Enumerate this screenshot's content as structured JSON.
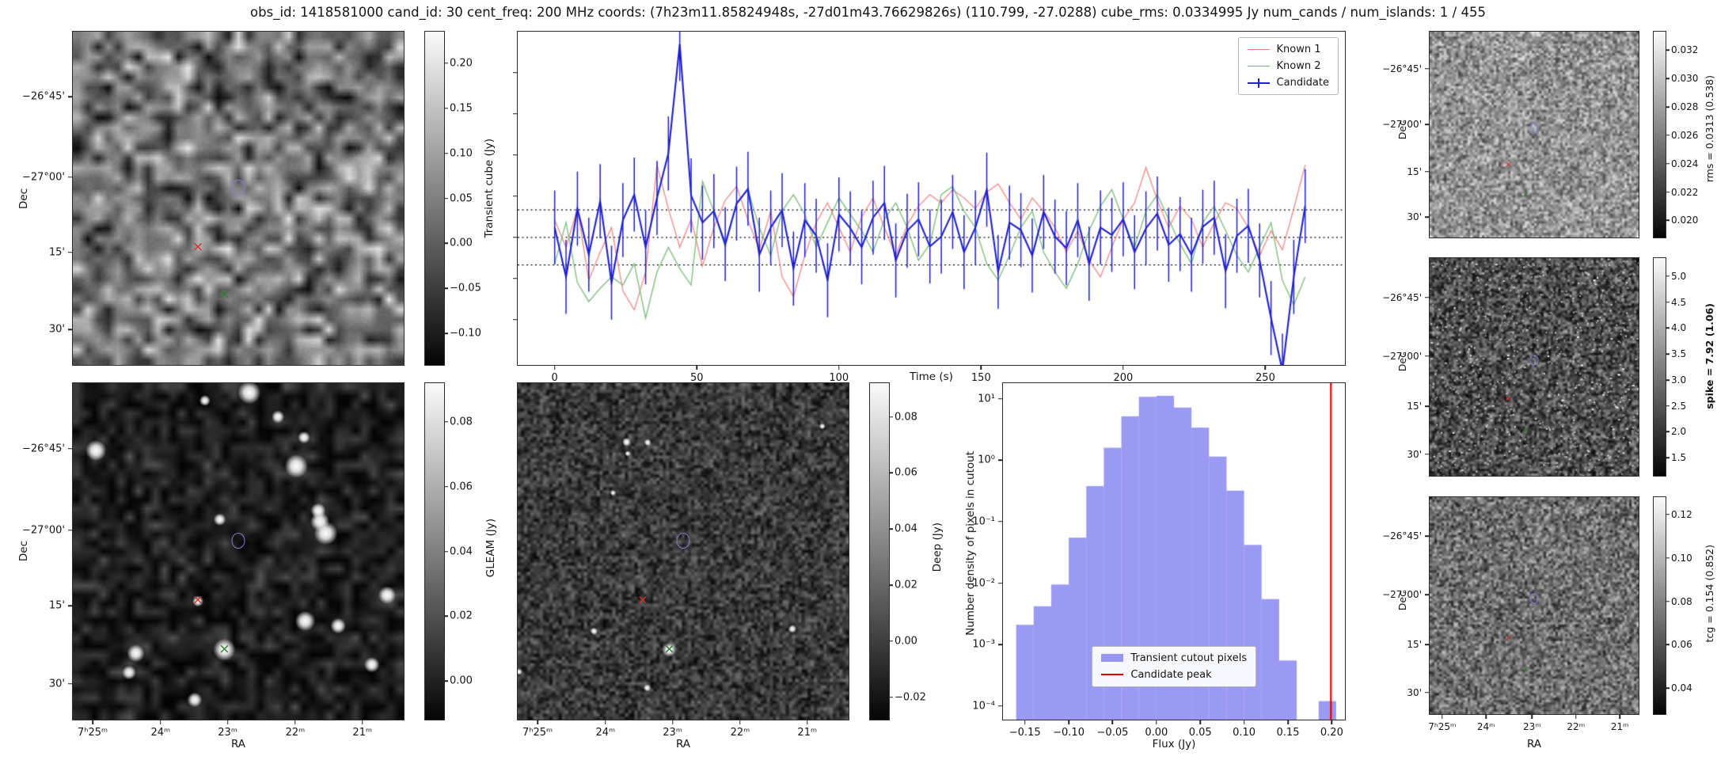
{
  "title": "obs_id: 1418581000 cand_id: 30 cent_freq: 200 MHz coords: (7h23m11.85824948s, -27d01m43.76629826s) (110.799, -27.0288) cube_rms: 0.0334995 Jy num_cands / num_islands: 1 / 455",
  "markers": [
    {
      "type": "circle",
      "name": "candidate",
      "color": "#8080d0",
      "fx": 0.5,
      "fy": 0.468
    },
    {
      "type": "x",
      "name": "known1",
      "color": "#cf2d2d",
      "fx": 0.378,
      "fy": 0.648
    },
    {
      "type": "x",
      "name": "known2",
      "color": "#2c7f2c",
      "fx": 0.458,
      "fy": 0.792
    }
  ],
  "panels": {
    "transient": {
      "ylabel": "Dec",
      "dec_ticks": [
        {
          "label": "−26°45'",
          "f": 0.195
        },
        {
          "label": "−27°00'",
          "f": 0.437
        },
        {
          "label": "15'",
          "f": 0.662
        },
        {
          "label": "30'",
          "f": 0.894
        }
      ],
      "cb_ticks": [
        {
          "label": "0.20",
          "f": 0.095
        },
        {
          "label": "0.15",
          "f": 0.23
        },
        {
          "label": "0.10",
          "f": 0.365
        },
        {
          "label": "0.05",
          "f": 0.5
        },
        {
          "label": "0.00",
          "f": 0.635
        },
        {
          "label": "−0.05",
          "f": 0.77
        },
        {
          "label": "−0.10",
          "f": 0.905
        }
      ]
    },
    "lightcurve": {
      "ylabel": "Transient cube (Jy)",
      "xlabel": "Time (s)"
    },
    "rms": {
      "ylabel": "Dec",
      "cb_label": "rms = 0.0313 (0.538)",
      "dec_ticks": [
        {
          "label": "−26°45'",
          "f": 0.18
        },
        {
          "label": "−27°00'",
          "f": 0.45
        },
        {
          "label": "15'",
          "f": 0.68
        },
        {
          "label": "30'",
          "f": 0.9
        }
      ],
      "cb_ticks": [
        {
          "label": "0.032",
          "f": 0.09
        },
        {
          "label": "0.030",
          "f": 0.228
        },
        {
          "label": "0.028",
          "f": 0.366
        },
        {
          "label": "0.026",
          "f": 0.503
        },
        {
          "label": "0.024",
          "f": 0.641
        },
        {
          "label": "0.022",
          "f": 0.779
        },
        {
          "label": "0.020",
          "f": 0.917
        }
      ]
    },
    "spike": {
      "ylabel": "Dec",
      "cb_label": "spike = 7.92 (1.06)",
      "dec_ticks": [
        {
          "label": "−26°45'",
          "f": 0.18
        },
        {
          "label": "−27°00'",
          "f": 0.45
        },
        {
          "label": "15'",
          "f": 0.68
        },
        {
          "label": "30'",
          "f": 0.9
        }
      ],
      "cb_ticks": [
        {
          "label": "5.0",
          "f": 0.083
        },
        {
          "label": "4.5",
          "f": 0.202
        },
        {
          "label": "4.0",
          "f": 0.321
        },
        {
          "label": "3.5",
          "f": 0.44
        },
        {
          "label": "3.0",
          "f": 0.56
        },
        {
          "label": "2.5",
          "f": 0.679
        },
        {
          "label": "2.0",
          "f": 0.798
        },
        {
          "label": "1.5",
          "f": 0.917
        }
      ]
    },
    "tcg": {
      "ylabel": "Dec",
      "xlabel": "RA",
      "cb_label": "tcg = 0.154 (0.852)",
      "dec_ticks": [
        {
          "label": "−26°45'",
          "f": 0.18
        },
        {
          "label": "−27°00'",
          "f": 0.45
        },
        {
          "label": "15'",
          "f": 0.68
        },
        {
          "label": "30'",
          "f": 0.9
        }
      ],
      "ra_ticks": [
        {
          "label": "7ʰ25ᵐ",
          "f": 0.06
        },
        {
          "label": "24ᵐ",
          "f": 0.27
        },
        {
          "label": "23ᵐ",
          "f": 0.49
        },
        {
          "label": "22ᵐ",
          "f": 0.7
        },
        {
          "label": "21ᵐ",
          "f": 0.91
        }
      ],
      "cb_ticks": [
        {
          "label": "0.12",
          "f": 0.08
        },
        {
          "label": "0.10",
          "f": 0.28
        },
        {
          "label": "0.08",
          "f": 0.48
        },
        {
          "label": "0.06",
          "f": 0.68
        },
        {
          "label": "0.04",
          "f": 0.88
        }
      ]
    },
    "gleam": {
      "ylabel": "Dec",
      "xlabel": "RA",
      "cb_label": "GLEAM (Jy)",
      "dec_ticks": [
        {
          "label": "−26°45'",
          "f": 0.195
        },
        {
          "label": "−27°00'",
          "f": 0.437
        },
        {
          "label": "15'",
          "f": 0.662
        },
        {
          "label": "30'",
          "f": 0.894
        }
      ],
      "ra_ticks": [
        {
          "label": "7ʰ25ᵐ",
          "f": 0.06
        },
        {
          "label": "24ᵐ",
          "f": 0.265
        },
        {
          "label": "23ᵐ",
          "f": 0.468
        },
        {
          "label": "22ᵐ",
          "f": 0.672
        },
        {
          "label": "21ᵐ",
          "f": 0.875
        }
      ],
      "cb_ticks": [
        {
          "label": "0.08",
          "f": 0.115
        },
        {
          "label": "0.06",
          "f": 0.308
        },
        {
          "label": "0.04",
          "f": 0.5
        },
        {
          "label": "0.02",
          "f": 0.692
        },
        {
          "label": "0.00",
          "f": 0.885
        }
      ]
    },
    "deep": {
      "xlabel": "RA",
      "cb_label": "Deep (Jy)",
      "ra_ticks": [
        {
          "label": "7ʰ25ᵐ",
          "f": 0.06
        },
        {
          "label": "24ᵐ",
          "f": 0.265
        },
        {
          "label": "23ᵐ",
          "f": 0.468
        },
        {
          "label": "22ᵐ",
          "f": 0.672
        },
        {
          "label": "21ᵐ",
          "f": 0.875
        }
      ],
      "cb_ticks": [
        {
          "label": "0.08",
          "f": 0.1
        },
        {
          "label": "0.06",
          "f": 0.267
        },
        {
          "label": "0.04",
          "f": 0.433
        },
        {
          "label": "0.02",
          "f": 0.6
        },
        {
          "label": "0.00",
          "f": 0.767
        },
        {
          "label": "−0.02",
          "f": 0.933
        }
      ]
    }
  },
  "chart_data": [
    {
      "type": "line",
      "title": "",
      "xlabel": "Time (s)",
      "ylabel": "Transient cube (Jy)",
      "xlim": [
        -13,
        278
      ],
      "ylim": [
        -0.155,
        0.25
      ],
      "xticks": [
        0,
        50,
        100,
        150,
        200,
        250
      ],
      "ytick_marks": [
        0.2,
        0.15,
        0.1,
        0.05,
        0.0,
        -0.05,
        -0.1
      ],
      "hlines": [
        0.0335,
        0.0,
        -0.0335
      ],
      "legend_position": "upper right",
      "x": [
        0,
        4,
        8,
        12,
        16,
        20,
        24,
        28,
        32,
        36,
        40,
        44,
        48,
        52,
        56,
        60,
        64,
        68,
        72,
        76,
        80,
        84,
        88,
        92,
        96,
        100,
        104,
        108,
        112,
        116,
        120,
        124,
        128,
        132,
        136,
        140,
        144,
        148,
        152,
        156,
        160,
        164,
        168,
        172,
        176,
        180,
        184,
        188,
        192,
        196,
        200,
        204,
        208,
        212,
        216,
        220,
        224,
        228,
        232,
        236,
        240,
        244,
        248,
        252,
        256,
        260,
        264
      ],
      "series": [
        {
          "name": "Known 1",
          "color": "#ee8383",
          "values": [
            0.021,
            -0.012,
            0.035,
            -0.052,
            -0.018,
            0.012,
            -0.065,
            -0.088,
            -0.042,
            0.088,
            0.035,
            -0.012,
            0.022,
            -0.035,
            0.012,
            0.045,
            0.062,
            0.021,
            -0.015,
            0.032,
            -0.048,
            -0.072,
            -0.022,
            0.018,
            0.042,
            0.012,
            -0.018,
            0.025,
            0.048,
            0.012,
            -0.022,
            0.015,
            0.038,
            0.052,
            0.042,
            0.058,
            0.048,
            0.035,
            0.055,
            0.065,
            0.042,
            0.022,
            0.048,
            0.032,
            0.012,
            -0.018,
            0.008,
            -0.028,
            -0.048,
            -0.012,
            0.022,
            0.042,
            0.085,
            0.045,
            0.012,
            0.038,
            0.022,
            -0.012,
            0.018,
            0.042,
            0.035,
            0.012,
            -0.022,
            0.008,
            -0.015,
            0.035,
            0.088
          ]
        },
        {
          "name": "Known 2",
          "color": "#74b874",
          "values": [
            -0.032,
            0.018,
            -0.055,
            -0.078,
            -0.062,
            -0.048,
            -0.058,
            -0.032,
            -0.098,
            -0.042,
            -0.012,
            -0.038,
            -0.058,
            0.068,
            0.032,
            -0.012,
            0.042,
            0.058,
            0.012,
            -0.022,
            0.032,
            0.052,
            0.028,
            -0.012,
            0.018,
            0.048,
            0.028,
            0.008,
            -0.018,
            0.022,
            0.042,
            0.012,
            -0.028,
            -0.008,
            0.052,
            0.062,
            0.032,
            0.012,
            -0.032,
            -0.052,
            -0.022,
            0.012,
            0.032,
            -0.018,
            -0.042,
            -0.062,
            -0.032,
            0.008,
            0.038,
            0.058,
            0.022,
            -0.012,
            0.032,
            0.052,
            0.022,
            -0.008,
            -0.032,
            0.018,
            0.038,
            0.008,
            -0.022,
            -0.042,
            -0.012,
            0.018,
            -0.052,
            -0.082,
            -0.048
          ]
        },
        {
          "name": "Candidate",
          "color": "#2020cf",
          "yerr": 0.045,
          "values": [
            0.012,
            -0.048,
            0.035,
            -0.021,
            0.044,
            -0.055,
            0.021,
            0.052,
            -0.012,
            0.048,
            0.102,
            0.235,
            0.051,
            0.018,
            0.032,
            -0.008,
            0.041,
            0.059,
            -0.021,
            0.012,
            0.033,
            -0.038,
            0.021,
            0.002,
            -0.052,
            0.028,
            0.011,
            -0.012,
            0.024,
            0.042,
            -0.028,
            0.008,
            0.022,
            -0.011,
            0.001,
            0.031,
            -0.018,
            0.012,
            0.058,
            -0.042,
            0.018,
            0.009,
            -0.022,
            0.031,
            0.001,
            -0.013,
            0.021,
            -0.032,
            0.012,
            0.003,
            0.022,
            -0.018,
            0.011,
            0.029,
            -0.009,
            0.004,
            -0.021,
            0.013,
            0.024,
            -0.041,
            0.002,
            0.014,
            -0.028,
            -0.098,
            -0.162,
            -0.048,
            0.038
          ]
        }
      ]
    },
    {
      "type": "bar",
      "xlabel": "Flux (Jy)",
      "ylabel": "Number density of pixels in cutout",
      "ylog": true,
      "xlim": [
        -0.175,
        0.215
      ],
      "ylim": [
        6e-05,
        18
      ],
      "bar_color": "#7b7bec",
      "bin_width": 0.02,
      "centers": [
        -0.15,
        -0.13,
        -0.11,
        -0.09,
        -0.07,
        -0.05,
        -0.03,
        -0.01,
        0.01,
        0.03,
        0.05,
        0.07,
        0.09,
        0.11,
        0.13,
        0.15,
        0.195
      ],
      "values": [
        0.0021,
        0.0042,
        0.0095,
        0.055,
        0.38,
        1.6,
        5.2,
        10.8,
        11.2,
        7.2,
        3.4,
        1.15,
        0.32,
        0.042,
        0.0055,
        0.00055,
        0.00012
      ],
      "vline": {
        "x": 0.199,
        "color": "#e00000",
        "label": "Candidate peak"
      },
      "xticks": [
        {
          "label": "−0.15",
          "v": -0.15
        },
        {
          "label": "−0.10",
          "v": -0.1
        },
        {
          "label": "−0.05",
          "v": -0.05
        },
        {
          "label": "0.00",
          "v": 0.0
        },
        {
          "label": "0.05",
          "v": 0.05
        },
        {
          "label": "0.10",
          "v": 0.1
        },
        {
          "label": "0.15",
          "v": 0.15
        },
        {
          "label": "0.20",
          "v": 0.2
        }
      ],
      "yticks": [
        {
          "label": "10¹",
          "v": 10
        },
        {
          "label": "10⁰",
          "v": 1
        },
        {
          "label": "10⁻¹",
          "v": 0.1
        },
        {
          "label": "10⁻²",
          "v": 0.01
        },
        {
          "label": "10⁻³",
          "v": 0.001
        },
        {
          "label": "10⁻⁴",
          "v": 0.0001
        }
      ],
      "legend": [
        {
          "label": "Transient cutout pixels",
          "type": "patch",
          "color": "#7b7bec"
        },
        {
          "label": "Candidate peak",
          "type": "line",
          "color": "#e00000"
        }
      ],
      "legend_position": "lower center"
    }
  ]
}
